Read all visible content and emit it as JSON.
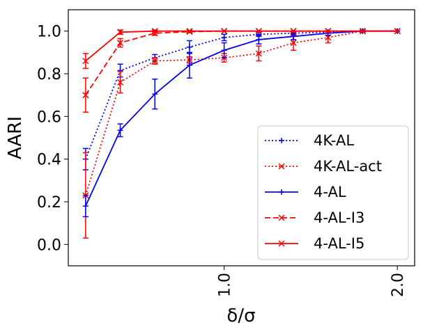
{
  "chart_data": {
    "type": "line",
    "xlabel": "δ/σ",
    "ylabel": "AARI",
    "xlim": [
      0.1,
      2.1
    ],
    "ylim": [
      -0.1,
      1.1
    ],
    "xticks": [
      1.0,
      2.0
    ],
    "xtick_labels": [
      "1.0",
      "2.0"
    ],
    "yticks": [
      0.0,
      0.2,
      0.4,
      0.6,
      0.8,
      1.0
    ],
    "ytick_labels": [
      "0.0",
      "0.2",
      "0.4",
      "0.6",
      "0.8",
      "1.0"
    ],
    "legend_position": "lower-right",
    "series": [
      {
        "name": "4K-AL",
        "color": "#0000ff",
        "style": "dotted",
        "marker": "plus",
        "x": [
          0.2,
          0.4,
          0.6,
          0.8,
          1.0,
          1.2,
          1.4,
          1.6,
          1.8,
          2.0
        ],
        "y": [
          0.4,
          0.815,
          0.875,
          0.925,
          0.97,
          0.985,
          0.99,
          0.995,
          1.0,
          1.0
        ],
        "err": [
          0.05,
          0.03,
          0.015,
          0.03,
          0.015,
          0.01,
          0.005,
          0.005,
          0.0,
          0.0
        ]
      },
      {
        "name": "4K-AL-act",
        "color": "#ff0000",
        "style": "dotted",
        "marker": "x",
        "x": [
          0.2,
          0.4,
          0.6,
          0.8,
          1.0,
          1.2,
          1.4,
          1.6,
          1.8,
          2.0
        ],
        "y": [
          0.23,
          0.76,
          0.86,
          0.865,
          0.875,
          0.895,
          0.945,
          0.97,
          1.0,
          1.0
        ],
        "err": [
          0.2,
          0.05,
          0.015,
          0.015,
          0.02,
          0.035,
          0.035,
          0.025,
          0.005,
          0.0
        ]
      },
      {
        "name": "4-AL",
        "color": "#0000ff",
        "style": "solid",
        "marker": "plus",
        "x": [
          0.2,
          0.4,
          0.6,
          0.8,
          1.0,
          1.2,
          1.4,
          1.6,
          1.8,
          2.0
        ],
        "y": [
          0.18,
          0.535,
          0.705,
          0.84,
          0.91,
          0.96,
          0.975,
          0.99,
          1.0,
          1.0
        ],
        "err": [
          0.05,
          0.03,
          0.07,
          0.06,
          0.035,
          0.02,
          0.015,
          0.01,
          0.005,
          0.0
        ]
      },
      {
        "name": "4-AL-I3",
        "color": "#ff0000",
        "style": "dashed",
        "marker": "x",
        "x": [
          0.2,
          0.4,
          0.6,
          0.8,
          1.0,
          1.2,
          1.4,
          1.6,
          1.8,
          2.0
        ],
        "y": [
          0.7,
          0.945,
          0.99,
          0.997,
          1.0,
          1.0,
          1.0,
          1.0,
          1.0,
          1.0
        ],
        "err": [
          0.08,
          0.02,
          0.01,
          0.005,
          0.0,
          0.0,
          0.0,
          0.0,
          0.0,
          0.0
        ]
      },
      {
        "name": "4-AL-I5",
        "color": "#ff0000",
        "style": "solid",
        "marker": "x",
        "x": [
          0.2,
          0.4,
          0.6,
          0.8,
          1.0,
          1.2,
          1.4,
          1.6,
          1.8,
          2.0
        ],
        "y": [
          0.86,
          0.995,
          1.0,
          1.0,
          1.0,
          1.0,
          1.0,
          1.0,
          1.0,
          1.0
        ],
        "err": [
          0.035,
          0.01,
          0.005,
          0.0,
          0.0,
          0.0,
          0.0,
          0.0,
          0.0,
          0.0
        ]
      }
    ]
  }
}
